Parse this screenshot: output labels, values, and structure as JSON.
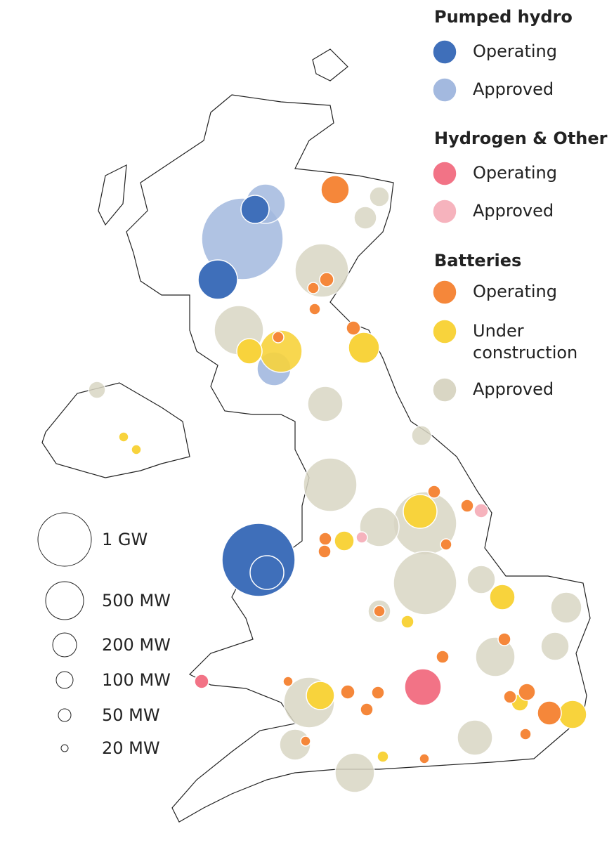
{
  "legend": {
    "groups": [
      {
        "title": "Pumped hydro",
        "items": [
          "Operating",
          "Approved"
        ]
      },
      {
        "title": "Hydrogen & Other",
        "items": [
          "Operating",
          "Approved"
        ]
      },
      {
        "title": "Batteries",
        "items": [
          "Operating",
          "Under construction",
          "Approved"
        ]
      }
    ]
  },
  "size_legend": [
    "1 GW",
    "500 MW",
    "200 MW",
    "100 MW",
    "50 MW",
    "20 MW"
  ]
}
